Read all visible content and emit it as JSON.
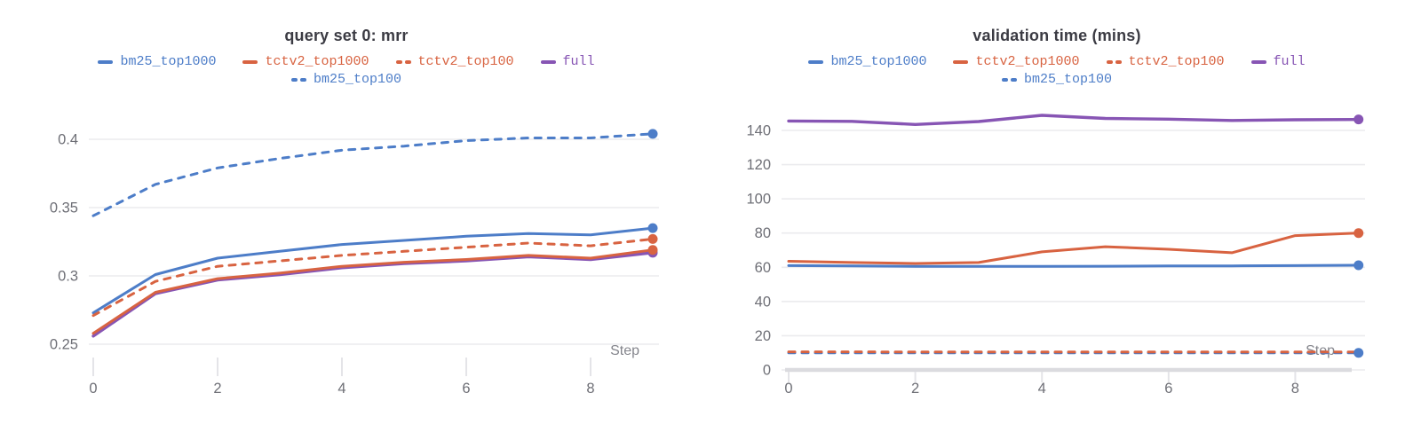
{
  "page": {
    "background": "#ffffff"
  },
  "axis": {
    "xlabel": "Step"
  },
  "colors": {
    "blue": "#4d7dc8",
    "orange": "#d86341",
    "purple": "#8755b4",
    "title_text": "#3b3b43",
    "tick_text": "#6e6f76",
    "step_text": "#84858c",
    "gridline": "#ebebee",
    "baseline": "#dbdbdf",
    "tick_mark": "#e4e4e8"
  },
  "chart_data": [
    {
      "type": "line",
      "title": "query set 0: mrr",
      "xlabel": "Step",
      "x": [
        0,
        1,
        2,
        3,
        4,
        5,
        6,
        7,
        8,
        9
      ],
      "xticks": [
        0,
        2,
        4,
        6,
        8
      ],
      "xtick_labels": [
        "0",
        "2",
        "4",
        "6",
        "8"
      ],
      "ytick_values": [
        0.25,
        0.3,
        0.35,
        0.4
      ],
      "ytick_labels": [
        "0.25",
        "0.3",
        "0.35",
        "0.4"
      ],
      "ylim": [
        0.239,
        0.4175
      ],
      "grid": true,
      "legend_position": "top",
      "legend_rows": [
        [
          "bm25_top1000",
          "tctv2_top1000",
          "tctv2_top100",
          "full"
        ],
        [
          "bm25_top100"
        ]
      ],
      "series": [
        {
          "name": "full",
          "color": "#8755b4",
          "style": "solid",
          "end_dot": true,
          "values": [
            0.256,
            0.287,
            0.297,
            0.301,
            0.306,
            0.309,
            0.311,
            0.314,
            0.312,
            0.317
          ]
        },
        {
          "name": "tctv2_top1000",
          "color": "#d86341",
          "style": "solid",
          "end_dot": true,
          "values": [
            0.258,
            0.288,
            0.298,
            0.302,
            0.307,
            0.31,
            0.312,
            0.315,
            0.313,
            0.319
          ]
        },
        {
          "name": "bm25_top1000",
          "color": "#4d7dc8",
          "style": "solid",
          "end_dot": true,
          "values": [
            0.273,
            0.301,
            0.313,
            0.318,
            0.323,
            0.326,
            0.329,
            0.331,
            0.33,
            0.335
          ]
        },
        {
          "name": "tctv2_top100",
          "color": "#d86341",
          "style": "dashed",
          "end_dot": true,
          "values": [
            0.271,
            0.296,
            0.307,
            0.311,
            0.315,
            0.318,
            0.321,
            0.324,
            0.322,
            0.327
          ]
        },
        {
          "name": "bm25_top100",
          "color": "#4d7dc8",
          "style": "dashed",
          "end_dot": true,
          "values": [
            0.344,
            0.367,
            0.379,
            0.386,
            0.392,
            0.395,
            0.399,
            0.401,
            0.401,
            0.404
          ]
        }
      ]
    },
    {
      "type": "line",
      "title": "validation time (mins)",
      "xlabel": "Step",
      "x": [
        0,
        1,
        2,
        3,
        4,
        5,
        6,
        7,
        8,
        9
      ],
      "xticks": [
        0,
        2,
        4,
        6,
        8
      ],
      "xtick_labels": [
        "0",
        "2",
        "4",
        "6",
        "8"
      ],
      "ytick_values": [
        0,
        20,
        40,
        60,
        80,
        100,
        120,
        140
      ],
      "ytick_labels": [
        "0",
        "20",
        "40",
        "60",
        "80",
        "100",
        "120",
        "140"
      ],
      "ylim": [
        0,
        150
      ],
      "grid": true,
      "legend_position": "top",
      "legend_rows": [
        [
          "bm25_top1000",
          "tctv2_top1000",
          "tctv2_top100",
          "full"
        ],
        [
          "bm25_top100"
        ]
      ],
      "series": [
        {
          "name": "full",
          "color": "#8755b4",
          "style": "solid",
          "end_dot": true,
          "values": [
            145.5,
            145.3,
            143.5,
            145.2,
            148.8,
            147.0,
            146.6,
            145.8,
            146.2,
            146.4
          ]
        },
        {
          "name": "tctv2_top1000",
          "color": "#d86341",
          "style": "solid",
          "end_dot": true,
          "values": [
            63.5,
            62.8,
            62.2,
            62.8,
            69.0,
            72.0,
            70.5,
            68.5,
            78.5,
            80.0
          ]
        },
        {
          "name": "bm25_top1000",
          "color": "#4d7dc8",
          "style": "solid",
          "end_dot": true,
          "values": [
            61.0,
            60.8,
            60.5,
            60.5,
            60.5,
            60.6,
            60.8,
            60.8,
            61.0,
            61.2
          ]
        },
        {
          "name": "bm25_top100",
          "color": "#4d7dc8",
          "style": "dashed",
          "end_dot": true,
          "values": [
            10.0,
            10.0,
            10.0,
            10.0,
            10.0,
            10.0,
            10.0,
            10.0,
            10.0,
            10.0
          ]
        },
        {
          "name": "tctv2_top100",
          "color": "#d86341",
          "style": "dashed",
          "end_dot": false,
          "values": [
            10.6,
            10.6,
            10.5,
            10.5,
            10.5,
            10.5,
            10.5,
            10.5,
            10.5,
            10.5
          ]
        }
      ]
    }
  ]
}
